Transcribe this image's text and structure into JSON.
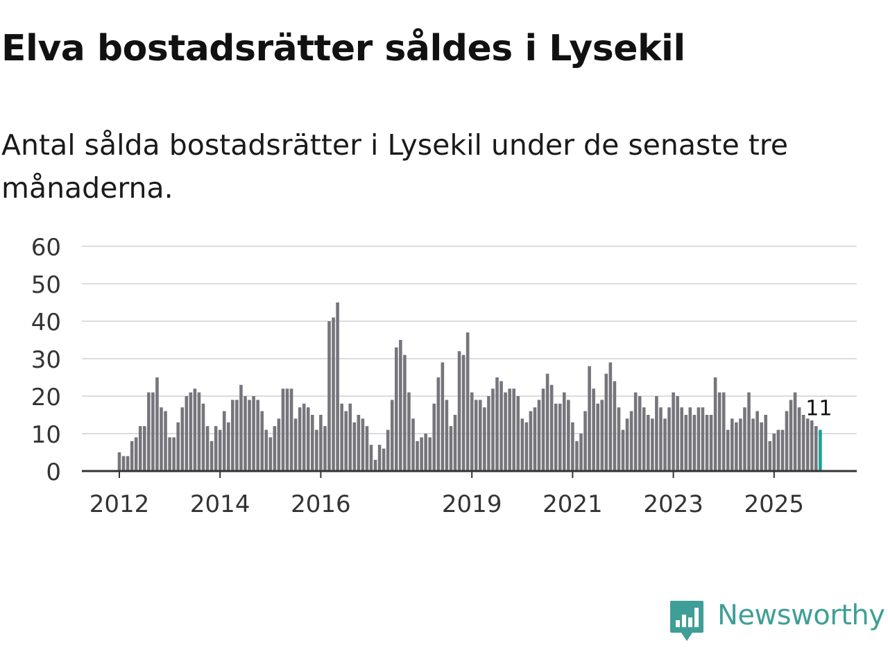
{
  "header": {
    "title": "Elva bostadsrätter såldes i Lysekil",
    "subtitle": "Antal sålda bostadsrätter i Lysekil under de senaste tre månaderna."
  },
  "brand": {
    "name": "Newsworthy",
    "icon": "newsworthy-logo-icon",
    "color": "#3f9f96"
  },
  "colors": {
    "bar": "#76757c",
    "highlight": "#14a39a",
    "grid": "#dcdcdc",
    "axis": "#333333"
  },
  "chart_data": {
    "type": "bar",
    "title": "Elva bostadsrätter såldes i Lysekil",
    "xlabel": "",
    "ylabel": "",
    "ylim": [
      0,
      60
    ],
    "yticks": [
      "0",
      "10",
      "20",
      "30",
      "40",
      "50",
      "60"
    ],
    "start": {
      "year": 2012,
      "month": 1
    },
    "xticks": [
      {
        "label": "2012",
        "year": 2012
      },
      {
        "label": "2014",
        "year": 2014
      },
      {
        "label": "2016",
        "year": 2016
      },
      {
        "label": "2019",
        "year": 2019
      },
      {
        "label": "2021",
        "year": 2021
      },
      {
        "label": "2023",
        "year": 2023
      },
      {
        "label": "2025",
        "year": 2025
      }
    ],
    "highlight_label": "11",
    "values": [
      5,
      4,
      4,
      8,
      9,
      12,
      12,
      21,
      21,
      25,
      17,
      16,
      9,
      9,
      13,
      17,
      20,
      21,
      22,
      21,
      18,
      12,
      8,
      12,
      11,
      16,
      13,
      19,
      19,
      23,
      20,
      19,
      20,
      19,
      16,
      11,
      9,
      12,
      14,
      22,
      22,
      22,
      14,
      17,
      18,
      17,
      15,
      11,
      15,
      12,
      40,
      41,
      45,
      18,
      16,
      18,
      13,
      15,
      14,
      12,
      7,
      3,
      7,
      6,
      11,
      19,
      33,
      35,
      31,
      21,
      14,
      8,
      9,
      10,
      9,
      18,
      25,
      29,
      19,
      12,
      15,
      32,
      31,
      37,
      21,
      19,
      19,
      17,
      20,
      22,
      25,
      24,
      21,
      22,
      22,
      20,
      14,
      13,
      16,
      17,
      19,
      22,
      26,
      23,
      18,
      18,
      21,
      19,
      13,
      8,
      10,
      16,
      28,
      22,
      18,
      19,
      26,
      29,
      24,
      17,
      11,
      14,
      16,
      21,
      20,
      17,
      15,
      14,
      20,
      17,
      14,
      17,
      21,
      20,
      17,
      15,
      17,
      15,
      17,
      17,
      15,
      15,
      25,
      21,
      21,
      11,
      14,
      13,
      14,
      17,
      21,
      14,
      16,
      13,
      15,
      8,
      10,
      11,
      11,
      16,
      19,
      21,
      17,
      15,
      14,
      13.5,
      12,
      11
    ]
  }
}
